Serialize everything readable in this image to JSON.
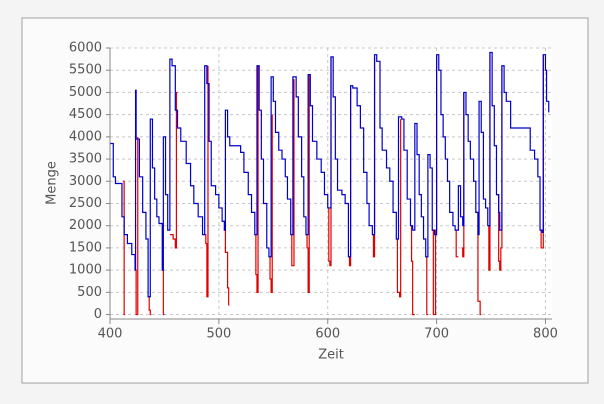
{
  "chart_data": {
    "type": "line",
    "x_label": "Zeit",
    "y_label": "Menge",
    "xlim": [
      400,
      806
    ],
    "ylim": [
      -100,
      6000
    ],
    "xticks": [
      400,
      500,
      600,
      700,
      800
    ],
    "yticks": [
      0,
      500,
      1000,
      1500,
      2000,
      2500,
      3000,
      3500,
      4000,
      4500,
      5000,
      5500,
      6000
    ],
    "grid": true,
    "step": "post",
    "series": [
      {
        "color": "#e00000",
        "x": [
          412,
          413,
          414,
          414.5,
          423,
          424,
          425,
          425.5,
          425.7,
          435,
          436,
          437,
          438,
          438.5,
          448,
          449,
          450,
          450.5,
          455,
          458,
          460,
          461,
          462,
          462.5,
          487,
          488,
          489,
          490,
          490.5,
          505,
          506,
          508,
          509,
          509.5,
          533,
          534,
          535,
          536,
          536.5,
          546,
          547,
          548,
          549,
          549.5,
          566,
          567,
          568,
          569,
          569.5,
          580,
          581,
          582,
          583,
          583.5,
          600,
          601,
          602,
          603,
          603.5,
          619,
          620,
          621,
          621.5,
          641,
          642,
          643,
          643.5,
          663,
          664,
          666,
          667,
          667.5,
          676,
          677,
          678,
          680,
          680.5,
          690,
          691,
          692,
          692.5,
          696,
          697,
          699,
          700,
          700.5,
          717,
          718,
          720,
          720.5,
          723,
          724,
          725,
          725.5,
          736,
          738,
          740,
          741,
          741.5,
          747,
          748,
          749,
          749.5,
          755,
          757,
          758,
          759,
          760,
          760.5,
          795,
          796,
          797,
          798
        ],
        "values": [
          3000,
          0,
          0,
          null,
          1000,
          0,
          0,
          4000,
          null,
          400,
          100,
          0,
          0,
          null,
          1000,
          0,
          0,
          null,
          1800,
          1700,
          1500,
          5000,
          5000,
          null,
          1800,
          1600,
          400,
          5600,
          null,
          1900,
          1400,
          600,
          200,
          null,
          1800,
          900,
          500,
          5600,
          null,
          1300,
          800,
          500,
          4500,
          null,
          1800,
          1100,
          1100,
          5300,
          null,
          1800,
          1500,
          500,
          5400,
          null,
          2400,
          1200,
          1100,
          5800,
          null,
          1300,
          1100,
          5100,
          null,
          1800,
          1300,
          5800,
          null,
          1700,
          500,
          400,
          4400,
          null,
          2000,
          1200,
          0,
          0,
          null,
          1300,
          0,
          0,
          null,
          1900,
          0,
          1900,
          5850,
          null,
          1900,
          1300,
          1300,
          null,
          1500,
          1300,
          5000,
          null,
          2300,
          300,
          0,
          0,
          null,
          2000,
          1000,
          5900,
          null,
          2700,
          1200,
          1000,
          1500,
          5600,
          null,
          1900,
          1500,
          1500,
          5850
        ]
      },
      {
        "color": "#0000cc",
        "x": [
          400,
          403,
          405,
          411,
          413,
          416,
          420,
          423,
          423.5,
          424,
          427,
          430,
          433,
          435,
          437,
          439,
          441,
          443,
          445,
          448,
          449,
          451,
          453,
          455,
          457,
          460,
          462,
          465,
          470,
          474,
          477,
          481,
          485,
          487,
          489,
          491,
          493,
          497,
          500,
          503,
          505,
          506,
          508,
          510,
          520,
          523,
          527,
          530,
          533,
          535,
          537,
          539,
          541,
          544,
          546,
          548,
          550,
          552,
          555,
          558,
          561,
          563,
          566,
          568,
          571,
          573,
          576,
          578,
          580,
          582,
          584,
          586,
          590,
          594,
          597,
          600,
          603,
          605,
          607,
          609,
          613,
          616,
          619,
          621,
          623,
          627,
          630,
          633,
          636,
          638,
          641,
          643,
          645,
          648,
          650,
          654,
          657,
          660,
          663,
          665,
          668,
          670,
          673,
          676,
          678,
          680,
          682,
          684,
          686,
          688,
          690,
          692,
          694,
          696,
          698,
          700,
          702,
          704,
          706,
          708,
          710,
          712,
          715,
          717,
          720,
          722,
          724,
          725,
          727,
          729,
          731,
          734,
          736,
          738,
          739,
          741,
          743,
          745,
          747,
          749,
          751,
          753,
          755,
          757,
          758,
          760,
          762,
          764,
          768,
          775,
          781,
          786,
          790,
          793,
          795,
          797,
          798,
          800,
          801,
          803
        ],
        "values": [
          3850,
          3100,
          2950,
          2200,
          1800,
          1600,
          1350,
          1000,
          5050,
          3950,
          3100,
          2300,
          1700,
          400,
          4400,
          3300,
          2600,
          2200,
          2050,
          1000,
          4000,
          2700,
          1900,
          5750,
          5600,
          4600,
          4200,
          3900,
          3400,
          2900,
          2500,
          2200,
          1800,
          5600,
          5200,
          3900,
          2900,
          2700,
          2400,
          2100,
          1900,
          4600,
          4000,
          3800,
          3650,
          3200,
          2700,
          2300,
          1800,
          5600,
          4600,
          3500,
          2500,
          1500,
          1300,
          5350,
          4800,
          4100,
          3700,
          3500,
          3100,
          2600,
          1800,
          5350,
          4900,
          4000,
          3100,
          2200,
          1800,
          5400,
          4700,
          3900,
          3500,
          3200,
          2700,
          2400,
          5800,
          4900,
          3500,
          2800,
          2700,
          2500,
          1300,
          5150,
          5100,
          4700,
          4200,
          3200,
          2500,
          2000,
          1800,
          5850,
          5700,
          4200,
          3700,
          3300,
          3000,
          2300,
          1700,
          4450,
          4400,
          3700,
          2600,
          2000,
          1900,
          4300,
          3600,
          2700,
          2200,
          1700,
          1300,
          3600,
          3300,
          1900,
          1800,
          5850,
          5500,
          4500,
          4000,
          3500,
          3000,
          2300,
          2000,
          1900,
          2900,
          2200,
          2000,
          5000,
          4500,
          3900,
          3500,
          3000,
          2300,
          1800,
          4800,
          4100,
          2600,
          2400,
          2000,
          5900,
          4700,
          3800,
          2700,
          2300,
          1900,
          5600,
          5000,
          4800,
          4200,
          4200,
          4200,
          3700,
          3500,
          3100,
          1900,
          1850,
          5850,
          5500,
          4800,
          4550
        ]
      }
    ]
  }
}
